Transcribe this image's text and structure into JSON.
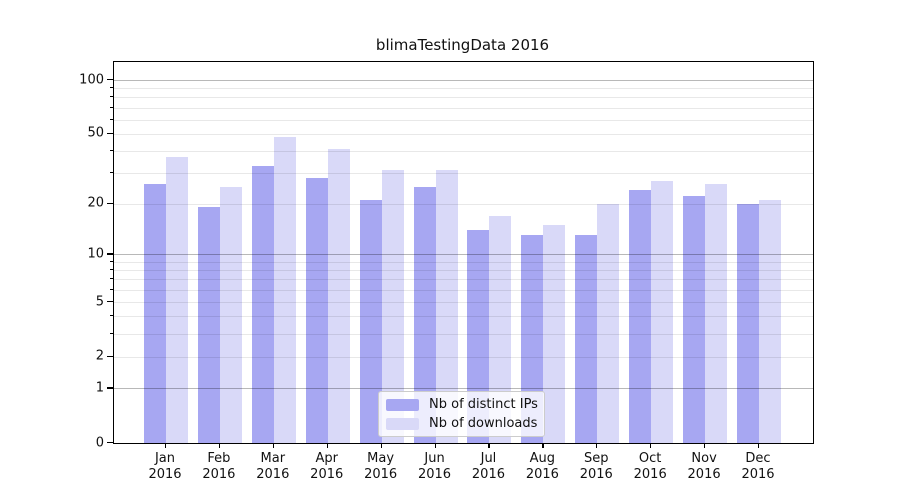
{
  "chart_data": {
    "type": "bar",
    "title": "blimaTestingData 2016",
    "year": "2016",
    "categories": [
      "Jan",
      "Feb",
      "Mar",
      "Apr",
      "May",
      "Jun",
      "Jul",
      "Aug",
      "Sep",
      "Oct",
      "Nov",
      "Dec"
    ],
    "series": [
      {
        "name": "Nb of distinct IPs",
        "color": "#a7a7f2",
        "values": [
          26,
          19,
          33,
          28,
          21,
          25,
          14,
          13,
          13,
          24,
          22,
          20
        ]
      },
      {
        "name": "Nb of downloads",
        "color": "#d9d9f8",
        "values": [
          37,
          25,
          48,
          41,
          31,
          31,
          17,
          15,
          20,
          27,
          26,
          21
        ]
      }
    ],
    "xlabel": "",
    "ylabel": "",
    "yscale": "log1p",
    "ylim": [
      0,
      100
    ],
    "y_ticks_labeled": [
      100,
      50,
      20,
      10,
      5,
      2,
      1,
      0
    ],
    "y_gridlines_major": [
      1,
      10,
      100
    ],
    "y_gridlines_minor": [
      2,
      3,
      4,
      5,
      6,
      7,
      8,
      9,
      20,
      30,
      40,
      50,
      60,
      70,
      80,
      90
    ],
    "grid": "on",
    "legend": {
      "position": "bottom-center",
      "entries": [
        "Nb of distinct IPs",
        "Nb of downloads"
      ]
    }
  }
}
